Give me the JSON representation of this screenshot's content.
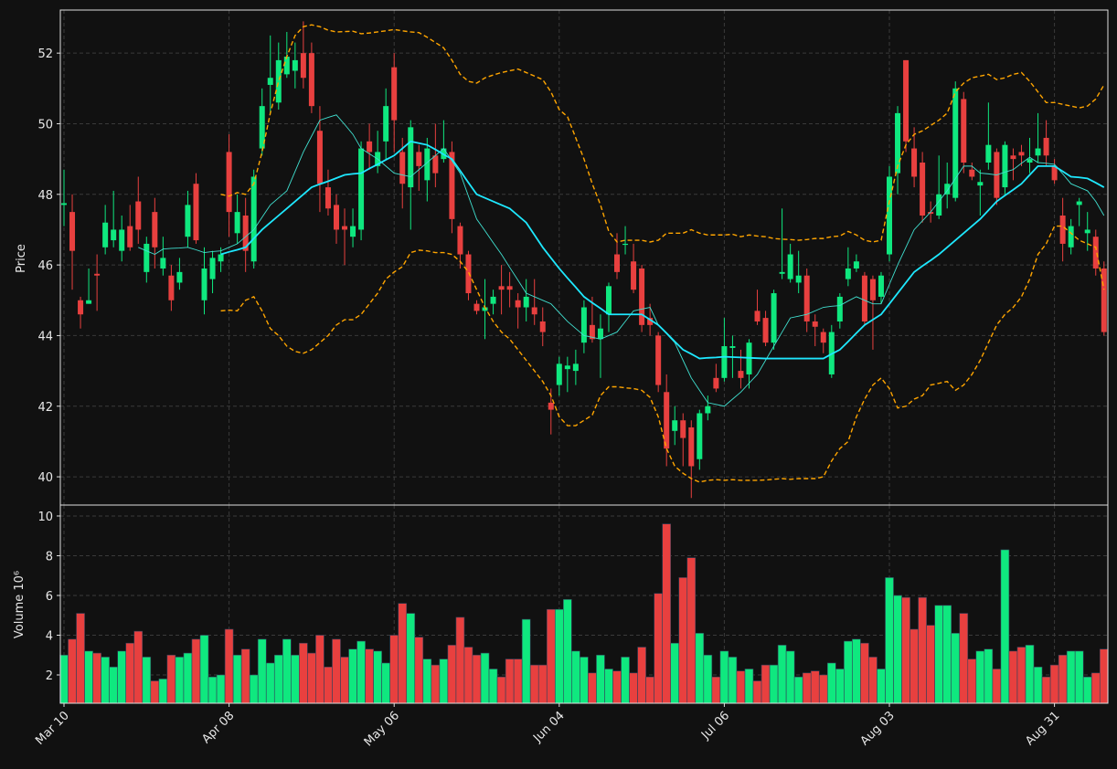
{
  "chart_data": {
    "type": "candlestick",
    "ylabel": "Price",
    "volume_ylabel": "Volume  10⁶",
    "up_color": "#0fe87f",
    "down_color": "#e8403f",
    "grid": true,
    "categories": [
      "Mar 10",
      null,
      null,
      null,
      null,
      null,
      null,
      null,
      null,
      null,
      null,
      null,
      null,
      null,
      null,
      null,
      null,
      null,
      null,
      null,
      "Apr 08",
      null,
      null,
      null,
      null,
      null,
      null,
      null,
      null,
      null,
      null,
      null,
      null,
      null,
      null,
      null,
      null,
      null,
      null,
      null,
      "May 06",
      null,
      null,
      null,
      null,
      null,
      null,
      null,
      null,
      null,
      null,
      null,
      null,
      null,
      null,
      null,
      null,
      null,
      null,
      null,
      "Jun 04",
      null,
      null,
      null,
      null,
      null,
      null,
      null,
      null,
      null,
      null,
      null,
      null,
      null,
      null,
      null,
      null,
      null,
      null,
      null,
      "Jul 06",
      null,
      null,
      null,
      null,
      null,
      null,
      null,
      null,
      null,
      null,
      null,
      null,
      null,
      null,
      null,
      null,
      null,
      null,
      null,
      "Aug 03",
      null,
      null,
      null,
      null,
      null,
      null,
      null,
      null,
      null,
      null,
      null,
      null,
      null,
      null,
      null,
      null,
      null,
      null,
      null,
      "Aug 31",
      null,
      null,
      null,
      null,
      null,
      null
    ],
    "open": [
      47.7,
      47.5,
      45.0,
      44.9,
      45.75,
      46.5,
      46.7,
      46.4,
      47.1,
      47.8,
      45.8,
      47.5,
      45.9,
      45.7,
      45.5,
      46.8,
      48.3,
      45.0,
      45.6,
      46.1,
      49.2,
      46.9,
      47.4,
      46.1,
      49.3,
      51.1,
      50.6,
      51.4,
      51.5,
      52.0,
      52.0,
      49.8,
      48.2,
      47.7,
      47.1,
      46.8,
      47.0,
      49.5,
      48.8,
      49.5,
      51.6,
      49.2,
      48.2,
      49.2,
      48.4,
      49.1,
      49.0,
      49.2,
      47.1,
      46.3,
      44.9,
      44.7,
      44.9,
      45.4,
      45.4,
      45.0,
      44.8,
      44.8,
      44.4,
      42.1,
      42.6,
      43.05,
      43.0,
      43.8,
      44.3,
      43.9,
      44.6,
      46.3,
      46.6,
      46.1,
      45.9,
      44.5,
      44.0,
      42.4,
      41.3,
      41.6,
      41.4,
      40.5,
      41.8,
      42.8,
      42.8,
      43.65,
      43.0,
      42.9,
      44.7,
      44.5,
      43.8,
      45.75,
      45.6,
      45.5,
      45.7,
      44.4,
      44.1,
      42.9,
      44.4,
      45.6,
      45.9,
      45.7,
      45.6,
      45.1,
      46.3,
      48.6,
      51.8,
      49.3,
      48.9,
      47.5,
      47.4,
      48.0,
      47.9,
      50.7,
      48.7,
      48.25,
      48.9,
      49.2,
      48.2,
      49.1,
      49.2,
      48.9,
      49.1,
      49.6,
      48.8,
      47.4,
      46.5,
      47.7,
      46.9,
      46.8,
      45.9
    ],
    "high": [
      48.7,
      48.0,
      45.1,
      45.9,
      46.3,
      47.7,
      48.1,
      47.4,
      47.7,
      48.5,
      46.8,
      47.9,
      46.8,
      46.0,
      46.2,
      48.1,
      48.6,
      46.5,
      46.4,
      46.5,
      49.7,
      48.0,
      47.9,
      48.7,
      51.0,
      52.5,
      52.3,
      52.6,
      52.3,
      52.9,
      52.3,
      50.5,
      48.7,
      48.0,
      47.6,
      47.6,
      49.5,
      50.0,
      49.8,
      51.0,
      52.0,
      49.6,
      50.1,
      49.4,
      49.6,
      50.0,
      50.1,
      49.5,
      47.2,
      46.4,
      45.0,
      45.6,
      45.3,
      46.0,
      45.8,
      45.2,
      45.6,
      45.6,
      44.8,
      42.5,
      43.4,
      43.4,
      43.6,
      45.0,
      45.1,
      44.6,
      45.5,
      46.9,
      47.1,
      46.6,
      46.0,
      44.9,
      44.1,
      42.9,
      42.0,
      41.8,
      41.6,
      41.9,
      42.3,
      43.2,
      44.5,
      44.0,
      43.6,
      43.9,
      45.3,
      44.7,
      45.3,
      47.6,
      46.6,
      46.4,
      45.9,
      44.6,
      44.2,
      44.3,
      45.2,
      46.5,
      46.3,
      45.8,
      45.7,
      45.8,
      48.8,
      50.5,
      51.8,
      49.9,
      49.2,
      47.8,
      49.1,
      48.9,
      51.2,
      50.9,
      48.9,
      48.7,
      50.6,
      49.3,
      49.5,
      49.3,
      49.4,
      49.6,
      50.3,
      50.1,
      49.0,
      47.9,
      47.3,
      47.9,
      47.5,
      47.0,
      46.1
    ],
    "low": [
      47.1,
      45.3,
      44.2,
      44.9,
      44.7,
      46.3,
      46.5,
      46.1,
      46.4,
      46.6,
      45.5,
      45.9,
      45.7,
      44.7,
      45.3,
      46.5,
      46.6,
      44.6,
      45.2,
      45.8,
      46.8,
      46.6,
      45.8,
      45.9,
      49.1,
      50.3,
      50.4,
      51.3,
      51.0,
      51.0,
      50.3,
      47.5,
      47.4,
      46.6,
      46.0,
      46.5,
      46.7,
      48.7,
      48.6,
      49.0,
      49.2,
      47.6,
      47.0,
      48.1,
      47.8,
      48.2,
      48.9,
      46.9,
      45.9,
      45.0,
      44.6,
      43.9,
      44.6,
      44.6,
      44.8,
      44.2,
      44.4,
      44.3,
      43.7,
      41.2,
      42.3,
      42.4,
      42.6,
      43.5,
      43.8,
      42.8,
      44.1,
      45.6,
      46.3,
      45.2,
      44.1,
      44.0,
      42.4,
      40.3,
      40.9,
      40.3,
      39.4,
      40.2,
      41.6,
      42.4,
      42.7,
      42.8,
      42.5,
      42.5,
      44.3,
      43.7,
      43.6,
      45.6,
      45.5,
      45.2,
      44.1,
      43.7,
      43.5,
      42.8,
      44.2,
      45.4,
      45.8,
      44.3,
      43.6,
      44.9,
      46.1,
      48.0,
      49.2,
      48.2,
      47.2,
      47.2,
      47.3,
      47.6,
      47.8,
      48.6,
      48.4,
      47.4,
      48.7,
      47.7,
      48.0,
      48.4,
      48.8,
      48.6,
      48.9,
      48.8,
      48.3,
      46.1,
      46.3,
      47.1,
      46.4,
      45.7,
      44.0
    ],
    "close": [
      47.75,
      46.4,
      44.6,
      45.0,
      45.7,
      47.2,
      47.0,
      47.0,
      46.5,
      47.0,
      46.6,
      46.5,
      46.2,
      45.0,
      45.8,
      47.7,
      46.7,
      45.9,
      46.2,
      46.3,
      47.5,
      47.5,
      46.4,
      48.5,
      50.5,
      51.3,
      51.8,
      51.9,
      51.8,
      51.3,
      50.5,
      48.3,
      47.6,
      47.0,
      47.0,
      47.1,
      49.3,
      49.2,
      49.2,
      50.5,
      50.1,
      48.3,
      49.9,
      48.8,
      49.3,
      48.6,
      49.3,
      47.3,
      46.3,
      45.2,
      44.7,
      44.8,
      45.1,
      45.3,
      45.3,
      44.8,
      45.1,
      44.6,
      44.1,
      41.9,
      43.2,
      43.15,
      43.2,
      44.8,
      43.9,
      44.2,
      45.4,
      45.8,
      46.6,
      45.3,
      44.3,
      44.3,
      42.6,
      40.8,
      41.6,
      41.1,
      40.3,
      41.8,
      42.0,
      42.5,
      43.7,
      43.7,
      42.8,
      43.8,
      44.4,
      43.8,
      45.2,
      45.8,
      46.3,
      45.7,
      44.4,
      44.25,
      43.8,
      44.1,
      45.1,
      45.9,
      46.1,
      44.4,
      45.0,
      45.7,
      48.5,
      50.3,
      49.5,
      48.5,
      47.4,
      47.45,
      48.0,
      48.3,
      51.0,
      48.9,
      48.5,
      48.35,
      49.4,
      47.9,
      49.4,
      49.0,
      49.1,
      49.0,
      49.3,
      49.1,
      48.4,
      46.6,
      47.1,
      47.8,
      47.0,
      45.9,
      44.1
    ],
    "volume": [
      3.0,
      3.8,
      5.1,
      3.2,
      3.1,
      2.9,
      2.4,
      3.2,
      3.6,
      4.2,
      2.9,
      1.7,
      1.8,
      3.0,
      2.9,
      3.1,
      3.8,
      4.0,
      1.9,
      2.0,
      4.3,
      3.0,
      3.3,
      2.0,
      3.8,
      2.6,
      3.0,
      3.8,
      3.0,
      3.6,
      3.1,
      4.0,
      2.4,
      3.8,
      2.9,
      3.3,
      3.7,
      3.3,
      3.2,
      2.6,
      4.0,
      5.6,
      5.1,
      3.9,
      2.8,
      2.5,
      2.8,
      3.5,
      4.9,
      3.4,
      3.0,
      3.1,
      2.3,
      1.9,
      2.8,
      2.8,
      4.8,
      2.5,
      2.5,
      5.3,
      5.3,
      5.8,
      3.2,
      2.9,
      2.1,
      3.0,
      2.3,
      2.2,
      2.9,
      2.1,
      3.4,
      1.9,
      6.1,
      9.6,
      3.6,
      6.9,
      7.9,
      4.1,
      3.0,
      1.9,
      3.2,
      2.9,
      2.2,
      2.3,
      1.7,
      2.5,
      2.5,
      3.5,
      3.2,
      1.9,
      2.1,
      2.2,
      2.0,
      2.6,
      2.3,
      3.7,
      3.8,
      3.6,
      2.9,
      2.3,
      6.9,
      6.0,
      5.9,
      4.3,
      5.9,
      4.5,
      5.5,
      5.5,
      4.1,
      5.1,
      2.8,
      3.2,
      3.3,
      2.3,
      8.3,
      3.2,
      3.4,
      3.5,
      2.4,
      1.9,
      2.5,
      3.0,
      3.2,
      3.2,
      1.9,
      2.1,
      3.3
    ],
    "series": [
      {
        "color": "#40e0d0",
        "linewidth": 0.9,
        "dashed": false,
        "values": [
          null,
          null,
          null,
          null,
          null,
          null,
          null,
          null,
          null,
          46.5,
          46.4,
          46.3,
          46.45,
          46.47,
          46.48,
          46.5,
          46.43,
          46.35,
          46.38,
          46.4,
          46.5,
          46.6,
          46.8,
          47.0,
          47.35,
          47.7,
          47.9,
          48.1,
          48.65,
          49.2,
          49.65,
          50.1,
          50.18,
          50.25,
          49.98,
          49.7,
          49.3,
          49.15,
          49.0,
          48.8,
          48.6,
          48.55,
          48.5,
          48.7,
          48.9,
          49.1,
          49.3,
          48.95,
          48.6,
          47.95,
          47.3,
          46.97,
          46.63,
          46.3,
          45.93,
          45.57,
          45.2,
          45.1,
          45.0,
          44.9,
          44.65,
          44.4,
          44.2,
          44.0,
          43.95,
          43.9,
          44.0,
          44.1,
          44.4,
          44.7,
          44.75,
          44.8,
          44.3,
          44.05,
          43.8,
          43.3,
          42.8,
          42.45,
          42.1,
          42.05,
          42.0,
          42.2,
          42.4,
          42.65,
          42.9,
          43.3,
          43.7,
          44.1,
          44.5,
          44.55,
          44.6,
          44.7,
          44.8,
          44.83,
          44.85,
          44.98,
          45.1,
          45.0,
          44.9,
          44.9,
          45.45,
          46.0,
          46.5,
          47.0,
          47.25,
          47.5,
          47.8,
          48.1,
          48.45,
          48.8,
          48.8,
          48.6,
          48.58,
          48.55,
          48.63,
          48.7,
          48.88,
          49.05,
          48.9,
          48.88,
          48.85,
          48.58,
          48.3,
          48.2,
          48.1,
          47.8,
          47.4
        ]
      },
      {
        "color": "#1ee8ff",
        "linewidth": 1.8,
        "dashed": false,
        "values": [
          null,
          null,
          null,
          null,
          null,
          null,
          null,
          null,
          null,
          null,
          null,
          null,
          null,
          null,
          null,
          null,
          null,
          null,
          null,
          46.3,
          46.37,
          46.43,
          46.5,
          46.75,
          47.0,
          47.2,
          47.4,
          47.6,
          47.8,
          48.0,
          48.2,
          48.29,
          48.37,
          48.46,
          48.55,
          48.58,
          48.6,
          48.73,
          48.85,
          48.98,
          49.1,
          49.3,
          49.5,
          49.45,
          49.4,
          49.27,
          49.13,
          49.0,
          48.67,
          48.33,
          48.0,
          47.9,
          47.8,
          47.7,
          47.6,
          47.4,
          47.2,
          46.85,
          46.5,
          46.2,
          45.9,
          45.63,
          45.37,
          45.1,
          44.93,
          44.77,
          44.6,
          44.6,
          44.6,
          44.6,
          44.6,
          44.45,
          44.3,
          44.07,
          43.83,
          43.6,
          43.48,
          43.35,
          43.37,
          43.38,
          43.4,
          43.39,
          43.38,
          43.37,
          43.36,
          43.35,
          43.35,
          43.35,
          43.35,
          43.35,
          43.35,
          43.35,
          43.35,
          43.48,
          43.6,
          43.83,
          44.07,
          44.3,
          44.45,
          44.6,
          44.9,
          45.2,
          45.5,
          45.8,
          45.97,
          46.13,
          46.3,
          46.5,
          46.7,
          46.9,
          47.1,
          47.3,
          47.55,
          47.8,
          47.97,
          48.13,
          48.3,
          48.55,
          48.8,
          48.8,
          48.8,
          48.65,
          48.5,
          48.48,
          48.45,
          48.33,
          48.2
        ]
      },
      {
        "color": "#ffa500",
        "linewidth": 1.4,
        "dashed": true,
        "values": [
          null,
          null,
          null,
          null,
          null,
          null,
          null,
          null,
          null,
          null,
          null,
          null,
          null,
          null,
          null,
          null,
          null,
          null,
          null,
          48.0,
          47.95,
          48.05,
          48.0,
          48.3,
          49.2,
          50.3,
          51.2,
          51.9,
          52.5,
          52.75,
          52.8,
          52.75,
          52.65,
          52.6,
          52.61,
          52.62,
          52.55,
          52.57,
          52.6,
          52.63,
          52.67,
          52.63,
          52.6,
          52.58,
          52.45,
          52.3,
          52.15,
          51.8,
          51.4,
          51.2,
          51.15,
          51.3,
          51.38,
          51.45,
          51.5,
          51.55,
          51.45,
          51.35,
          51.25,
          50.9,
          50.4,
          50.2,
          49.6,
          49.0,
          48.3,
          47.7,
          46.95,
          46.65,
          46.7,
          46.7,
          46.7,
          46.65,
          46.7,
          46.9,
          46.9,
          46.9,
          47.0,
          46.9,
          46.85,
          46.85,
          46.85,
          46.87,
          46.8,
          46.85,
          46.82,
          46.8,
          46.75,
          46.73,
          46.72,
          46.7,
          46.72,
          46.75,
          46.75,
          46.8,
          46.82,
          46.95,
          46.85,
          46.7,
          46.65,
          46.7,
          47.8,
          48.8,
          49.4,
          49.7,
          49.8,
          49.95,
          50.1,
          50.3,
          50.9,
          51.15,
          51.3,
          51.35,
          51.4,
          51.25,
          51.3,
          51.4,
          51.45,
          51.2,
          50.9,
          50.6,
          50.6,
          50.55,
          50.5,
          50.45,
          50.5,
          50.7,
          51.1
        ]
      },
      {
        "color": "#ffa500",
        "linewidth": 1.4,
        "dashed": true,
        "values": [
          null,
          null,
          null,
          null,
          null,
          null,
          null,
          null,
          null,
          null,
          null,
          null,
          null,
          null,
          null,
          null,
          null,
          null,
          null,
          44.7,
          44.72,
          44.7,
          45.0,
          45.1,
          44.7,
          44.2,
          44.0,
          43.7,
          43.55,
          43.5,
          43.6,
          43.8,
          44.0,
          44.3,
          44.45,
          44.45,
          44.6,
          44.9,
          45.2,
          45.6,
          45.8,
          45.95,
          46.35,
          46.42,
          46.4,
          46.35,
          46.35,
          46.3,
          46.1,
          45.8,
          45.3,
          44.8,
          44.4,
          44.1,
          43.9,
          43.6,
          43.3,
          43.0,
          42.7,
          42.3,
          41.7,
          41.45,
          41.45,
          41.6,
          41.75,
          42.3,
          42.55,
          42.55,
          42.52,
          42.5,
          42.45,
          42.25,
          41.7,
          40.8,
          40.3,
          40.1,
          39.95,
          39.85,
          39.9,
          39.92,
          39.9,
          39.92,
          39.9,
          39.9,
          39.9,
          39.91,
          39.93,
          39.95,
          39.93,
          39.95,
          39.95,
          39.95,
          40.0,
          40.45,
          40.8,
          41.0,
          41.7,
          42.2,
          42.6,
          42.8,
          42.5,
          41.95,
          42.0,
          42.2,
          42.3,
          42.6,
          42.65,
          42.7,
          42.45,
          42.6,
          42.9,
          43.3,
          43.8,
          44.3,
          44.6,
          44.8,
          45.1,
          45.6,
          46.3,
          46.6,
          47.1,
          47.1,
          46.9,
          46.7,
          46.6,
          46.5,
          45.3
        ]
      }
    ],
    "ylim": [
      39.2,
      53.22
    ],
    "yticks": [
      40,
      42,
      44,
      46,
      48,
      50,
      52
    ],
    "volume_ylim": [
      0.575,
      10.55
    ],
    "volume_yticks": [
      2,
      4,
      6,
      8,
      10
    ]
  }
}
